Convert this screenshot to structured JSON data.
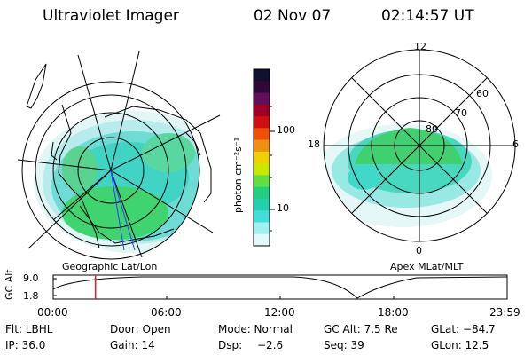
{
  "header": {
    "instrument": "Ultraviolet Imager",
    "date": "02 Nov 07",
    "time": "02:14:57 UT"
  },
  "colorbar": {
    "label": "photon cm⁻²s⁻¹",
    "ticks": [
      "100",
      "10"
    ],
    "colors": [
      "#101030",
      "#300838",
      "#60105a",
      "#a00028",
      "#d01010",
      "#f05008",
      "#f09010",
      "#f0d000",
      "#c8e800",
      "#60e040",
      "#20d080",
      "#20d0b0",
      "#40e0d8",
      "#a0f0f0",
      "#e0fafa"
    ]
  },
  "left_map": {
    "label": "Geographic Lat/Lon"
  },
  "right_map": {
    "label": "Apex MLat/MLT",
    "mlt_labels": {
      "top": "12",
      "left": "18",
      "right": "6",
      "bottom": "0"
    },
    "lat_labels": [
      "60",
      "70",
      "80"
    ]
  },
  "timeline": {
    "axis_label": "GC Alt",
    "y_ticks": [
      "9.0",
      "1.8"
    ],
    "x_ticks": [
      "00:00",
      "06:00",
      "12:00",
      "18:00",
      "23:59"
    ],
    "current_time_fraction": 0.0931,
    "marker_color": "#e02020"
  },
  "info": {
    "flt": "Flt: LBHL",
    "door": "Door: Open",
    "mode": "Mode: Normal",
    "gcalt": "GC Alt: 7.5 Re",
    "glat": "GLat: −84.7",
    "ip": "IP: 36.0",
    "gain": "Gain: 14",
    "dsp_label": "Dsp:",
    "dsp_value": "−2.6",
    "seq": "Seq: 39",
    "glon": "GLon: 12.5"
  }
}
